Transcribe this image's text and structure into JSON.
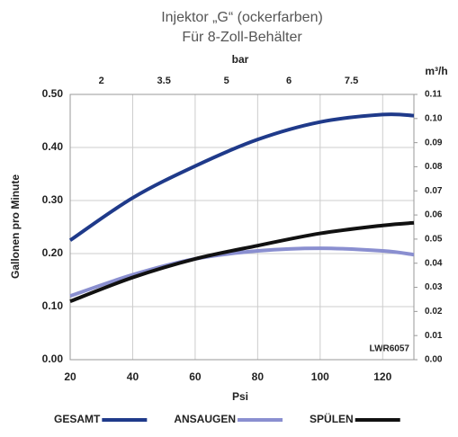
{
  "chart_data": {
    "type": "line",
    "title": [
      "Injektor „G“ (ockerfarben)",
      "Für 8-Zoll-Behälter"
    ],
    "x_label": "Psi",
    "y_label": "Gallonen pro Minute",
    "x2_label": "bar",
    "y2_label": "m³/h",
    "annotation": "LWR6057",
    "x": [
      20,
      40,
      60,
      80,
      100,
      120,
      130
    ],
    "series": [
      {
        "name": "GESAMT",
        "color": "#1f3a8a",
        "values": [
          0.225,
          0.305,
          0.365,
          0.415,
          0.448,
          0.462,
          0.46
        ]
      },
      {
        "name": "ANSAUGEN",
        "color": "#8a8fd0",
        "values": [
          0.12,
          0.16,
          0.19,
          0.205,
          0.21,
          0.205,
          0.198
        ]
      },
      {
        "name": "SPÜLEN",
        "color": "#111111",
        "values": [
          0.11,
          0.155,
          0.19,
          0.215,
          0.238,
          0.253,
          0.258
        ]
      }
    ],
    "xlim": [
      20,
      130
    ],
    "xticks": [
      20,
      40,
      60,
      80,
      100,
      120
    ],
    "x2_categories": [
      "2",
      "3.5",
      "5",
      "6",
      "7.5"
    ],
    "ylim": [
      0,
      0.5
    ],
    "yticks": [
      {
        "value": 0,
        "label": "0.00"
      },
      {
        "value": 0.1,
        "label": "0.10"
      },
      {
        "value": 0.2,
        "label": "0.20"
      },
      {
        "value": 0.3,
        "label": "0.30"
      },
      {
        "value": 0.4,
        "label": "0.40"
      },
      {
        "value": 0.5,
        "label": "0.50"
      }
    ],
    "y2lim": [
      0,
      0.11
    ],
    "y2ticks": [
      {
        "value": 0,
        "label": "0.00"
      },
      0.01,
      0.02,
      0.03,
      0.04,
      0.05,
      0.06,
      0.07,
      0.08,
      0.09,
      {
        "value": 0.1,
        "label": "0.10"
      },
      0.11
    ],
    "grid": true
  }
}
